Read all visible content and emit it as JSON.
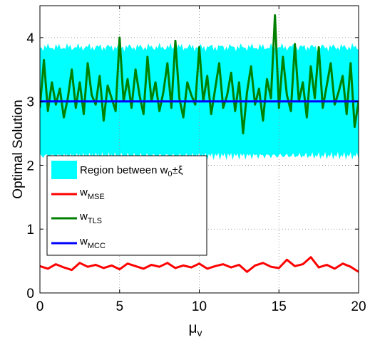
{
  "chart_data": {
    "type": "line",
    "xlabel": "μ",
    "xlabel_sub": "v",
    "ylabel": "Optimal Solution",
    "xlim": [
      0,
      20
    ],
    "ylim": [
      0,
      4.5
    ],
    "xticks": [
      0,
      5,
      10,
      15,
      20
    ],
    "yticks": [
      0,
      1,
      2,
      3,
      4
    ],
    "grid": true,
    "legend_position": "lower-left",
    "band": {
      "label_main": "Region between w",
      "label_sub": "0",
      "label_tail": "±ξ",
      "color": "#00ffff",
      "center": 3.0,
      "half_width": 0.85
    },
    "series": [
      {
        "name_main": "w",
        "name_sub": "MSE",
        "color": "#ff0000",
        "x": [
          0,
          0.5,
          1,
          1.5,
          2,
          2.5,
          3,
          3.5,
          4,
          4.5,
          5,
          5.5,
          6,
          6.5,
          7,
          7.5,
          8,
          8.5,
          9,
          9.5,
          10,
          10.5,
          11,
          11.5,
          12,
          12.5,
          13,
          13.5,
          14,
          14.5,
          15,
          15.5,
          16,
          16.5,
          17,
          17.5,
          18,
          18.5,
          19,
          19.5,
          20
        ],
        "y": [
          0.42,
          0.38,
          0.45,
          0.4,
          0.36,
          0.47,
          0.41,
          0.44,
          0.39,
          0.43,
          0.37,
          0.46,
          0.42,
          0.38,
          0.44,
          0.41,
          0.47,
          0.39,
          0.43,
          0.4,
          0.46,
          0.38,
          0.42,
          0.45,
          0.4,
          0.44,
          0.33,
          0.43,
          0.47,
          0.41,
          0.39,
          0.52,
          0.42,
          0.45,
          0.56,
          0.4,
          0.44,
          0.38,
          0.46,
          0.41,
          0.33
        ]
      },
      {
        "name_main": "w",
        "name_sub": "TLS",
        "color": "#008000",
        "x": [
          0,
          0.25,
          0.5,
          0.75,
          1,
          1.25,
          1.5,
          1.75,
          2,
          2.25,
          2.5,
          2.75,
          3,
          3.25,
          3.5,
          3.75,
          4,
          4.25,
          4.5,
          4.75,
          5,
          5.25,
          5.5,
          5.75,
          6,
          6.25,
          6.5,
          6.75,
          7,
          7.25,
          7.5,
          7.75,
          8,
          8.25,
          8.5,
          8.75,
          9,
          9.25,
          9.5,
          9.75,
          10,
          10.25,
          10.5,
          10.75,
          11,
          11.25,
          11.5,
          11.75,
          12,
          12.25,
          12.5,
          12.75,
          13,
          13.25,
          13.5,
          13.75,
          14,
          14.25,
          14.5,
          14.75,
          15,
          15.25,
          15.5,
          15.75,
          16,
          16.25,
          16.5,
          16.75,
          17,
          17.25,
          17.5,
          17.75,
          18,
          18.25,
          18.5,
          18.75,
          19,
          19.25,
          19.5,
          19.75,
          20
        ],
        "y": [
          2.9,
          3.65,
          2.85,
          3.3,
          2.95,
          3.2,
          2.75,
          3.05,
          3.5,
          2.9,
          3.3,
          2.8,
          3.6,
          3.1,
          2.95,
          3.4,
          2.7,
          3.25,
          3.05,
          2.85,
          4.0,
          3.0,
          3.35,
          2.9,
          3.5,
          3.1,
          2.8,
          3.7,
          3.0,
          3.3,
          2.85,
          3.15,
          3.6,
          2.9,
          3.95,
          3.05,
          2.75,
          3.3,
          3.1,
          2.95,
          3.85,
          3.0,
          3.4,
          2.8,
          3.2,
          3.6,
          2.9,
          3.1,
          3.45,
          2.85,
          3.3,
          2.5,
          3.15,
          3.55,
          2.95,
          3.2,
          2.7,
          3.35,
          3.05,
          4.35,
          2.9,
          3.7,
          3.1,
          2.85,
          3.9,
          3.0,
          3.3,
          2.75,
          3.55,
          3.05,
          3.85,
          2.9,
          3.25,
          3.6,
          2.95,
          3.15,
          3.4,
          2.8,
          3.6,
          2.6,
          3.0
        ]
      },
      {
        "name_main": "w",
        "name_sub": "MCC",
        "color": "#0000ff",
        "x": [
          0,
          20
        ],
        "y": [
          3.0,
          3.0
        ]
      }
    ]
  }
}
